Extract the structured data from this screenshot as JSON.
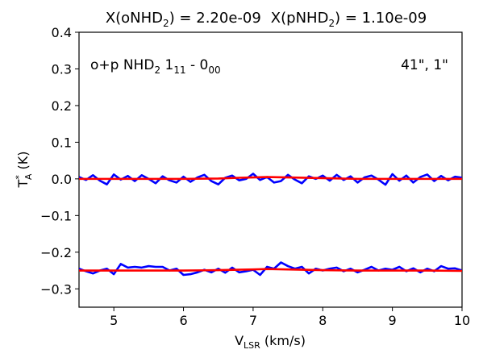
{
  "chart_data": {
    "type": "line",
    "title": {
      "part1_prefix": "X(oNHD",
      "part1_sub": "2",
      "part1_suffix": ") = 2.20e-09",
      "part2_prefix": "X(pNHD",
      "part2_sub": "2",
      "part2_suffix": ") = 1.10e-09"
    },
    "xlabel": {
      "main": "V",
      "sub": "LSR",
      "rest": " (km/s)"
    },
    "ylabel": {
      "main": "T",
      "sup": "*",
      "sub": "A",
      "rest": " (K)"
    },
    "xlim": [
      4.5,
      10.0
    ],
    "ylim": [
      -0.35,
      0.4
    ],
    "x_ticks": [
      {
        "value": 5,
        "label": "5"
      },
      {
        "value": 6,
        "label": "6"
      },
      {
        "value": 7,
        "label": "7"
      },
      {
        "value": 8,
        "label": "8"
      },
      {
        "value": 9,
        "label": "9"
      },
      {
        "value": 10,
        "label": "10"
      }
    ],
    "y_ticks": [
      {
        "value": 0.4,
        "label": "0.4"
      },
      {
        "value": 0.3,
        "label": "0.3"
      },
      {
        "value": 0.2,
        "label": "0.2"
      },
      {
        "value": 0.1,
        "label": "0.1"
      },
      {
        "value": 0.0,
        "label": "0.0"
      },
      {
        "value": -0.1,
        "label": "−0.1"
      },
      {
        "value": -0.2,
        "label": "−0.2"
      },
      {
        "value": -0.3,
        "label": "−0.3"
      }
    ],
    "annotations": {
      "line_label": {
        "prefix": "o+p NHD",
        "sub": "2",
        "mid": " 1",
        "sub2": "11",
        "mid2": " - 0",
        "sub3": "00"
      },
      "resolution": "41\", 1\""
    },
    "grid": false,
    "colors": {
      "observed": "#0000ff",
      "model": "#ff0000"
    },
    "series": [
      {
        "color": "#0000ff",
        "x": [
          4.5,
          4.6,
          4.7,
          4.8,
          4.9,
          5.0,
          5.1,
          5.2,
          5.3,
          5.4,
          5.5,
          5.6,
          5.7,
          5.8,
          5.9,
          6.0,
          6.1,
          6.2,
          6.3,
          6.4,
          6.5,
          6.6,
          6.7,
          6.8,
          6.9,
          7.0,
          7.1,
          7.2,
          7.3,
          7.4,
          7.5,
          7.6,
          7.7,
          7.8,
          7.9,
          8.0,
          8.1,
          8.2,
          8.3,
          8.4,
          8.5,
          8.6,
          8.7,
          8.8,
          8.9,
          9.0,
          9.1,
          9.2,
          9.3,
          9.4,
          9.5,
          9.6,
          9.7,
          9.8,
          9.9,
          10.0
        ],
        "y": [
          0.005,
          -0.003,
          0.01,
          -0.005,
          -0.015,
          0.012,
          -0.002,
          0.008,
          -0.006,
          0.01,
          0.0,
          -0.012,
          0.007,
          -0.004,
          -0.01,
          0.006,
          -0.008,
          0.004,
          0.011,
          -0.006,
          -0.015,
          0.003,
          0.009,
          -0.004,
          0.0,
          0.014,
          -0.003,
          0.005,
          -0.01,
          -0.006,
          0.011,
          -0.002,
          -0.012,
          0.007,
          0.0,
          0.009,
          -0.005,
          0.011,
          -0.003,
          0.007,
          -0.01,
          0.004,
          0.009,
          -0.002,
          -0.016,
          0.013,
          -0.005,
          0.009,
          -0.01,
          0.005,
          0.012,
          -0.006,
          0.008,
          -0.004,
          0.006,
          0.003
        ]
      },
      {
        "color": "#ff0000",
        "x": [
          4.5,
          5.0,
          5.5,
          6.0,
          6.5,
          6.8,
          7.0,
          7.2,
          7.5,
          8.0,
          8.5,
          9.0,
          9.5,
          10.0
        ],
        "y": [
          0.0,
          0.0,
          0.0,
          0.0,
          0.001,
          0.003,
          0.004,
          0.005,
          0.004,
          0.002,
          0.0,
          0.0,
          0.0,
          0.0
        ]
      },
      {
        "color": "#0000ff",
        "x": [
          4.5,
          4.6,
          4.7,
          4.8,
          4.9,
          5.0,
          5.1,
          5.2,
          5.3,
          5.4,
          5.5,
          5.6,
          5.7,
          5.8,
          5.9,
          6.0,
          6.1,
          6.2,
          6.3,
          6.4,
          6.5,
          6.6,
          6.7,
          6.8,
          6.9,
          7.0,
          7.1,
          7.2,
          7.3,
          7.4,
          7.5,
          7.6,
          7.7,
          7.8,
          7.9,
          8.0,
          8.1,
          8.2,
          8.3,
          8.4,
          8.5,
          8.6,
          8.7,
          8.8,
          8.9,
          9.0,
          9.1,
          9.2,
          9.3,
          9.4,
          9.5,
          9.6,
          9.7,
          9.8,
          9.9,
          10.0
        ],
        "y": [
          -0.245,
          -0.252,
          -0.258,
          -0.25,
          -0.245,
          -0.26,
          -0.232,
          -0.242,
          -0.24,
          -0.242,
          -0.238,
          -0.24,
          -0.24,
          -0.25,
          -0.245,
          -0.262,
          -0.26,
          -0.255,
          -0.248,
          -0.255,
          -0.245,
          -0.256,
          -0.242,
          -0.255,
          -0.252,
          -0.248,
          -0.262,
          -0.24,
          -0.245,
          -0.228,
          -0.238,
          -0.245,
          -0.24,
          -0.258,
          -0.245,
          -0.25,
          -0.245,
          -0.242,
          -0.252,
          -0.245,
          -0.255,
          -0.248,
          -0.24,
          -0.25,
          -0.245,
          -0.248,
          -0.24,
          -0.252,
          -0.244,
          -0.255,
          -0.245,
          -0.252,
          -0.238,
          -0.245,
          -0.244,
          -0.25
        ]
      },
      {
        "color": "#ff0000",
        "x": [
          4.5,
          5.0,
          5.5,
          6.0,
          6.5,
          7.0,
          7.2,
          7.5,
          8.0,
          8.5,
          9.0,
          9.5,
          10.0
        ],
        "y": [
          -0.25,
          -0.25,
          -0.25,
          -0.25,
          -0.249,
          -0.247,
          -0.246,
          -0.247,
          -0.249,
          -0.25,
          -0.25,
          -0.25,
          -0.251
        ]
      }
    ]
  }
}
